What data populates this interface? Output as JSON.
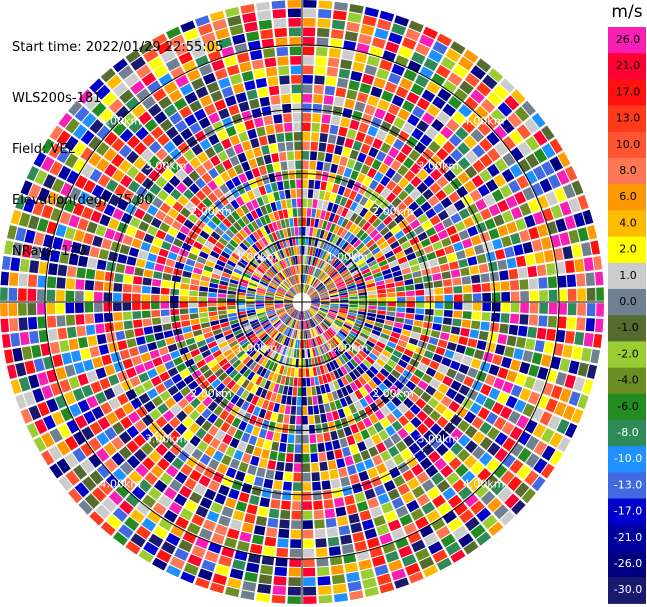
{
  "info": {
    "start_time": "Start time: 2022/01/29 22:55:05",
    "instrument": "WLS200s-181",
    "field": "Field: VEL",
    "elevation": "Elevation(deg): 75.00",
    "nrays": "NRays: 120"
  },
  "colorbar": {
    "unit": "m/s",
    "ticks": [
      "26.0",
      "21.0",
      "17.0",
      "13.0",
      "10.0",
      "8.0",
      "6.0",
      "4.0",
      "2.0",
      "1.0",
      "0.0",
      "-1.0",
      "-2.0",
      "-4.0",
      "-6.0",
      "-8.0",
      "-10.0",
      "-13.0",
      "-17.0",
      "-21.0",
      "-26.0",
      "-30.0"
    ],
    "colors": [
      "#f81fb4",
      "#ff0033",
      "#ff1111",
      "#ff3a1a",
      "#ff5533",
      "#ff7755",
      "#ff9900",
      "#ffbb00",
      "#ffff00",
      "#cccccc",
      "#708090",
      "#556b2f",
      "#9acd32",
      "#6b8e23",
      "#228b22",
      "#2e8b57",
      "#1e90ff",
      "#4169e1",
      "#0000cd",
      "#0000a0",
      "#000080",
      "#191970"
    ]
  },
  "chart_data": {
    "type": "heatmap",
    "projection": "polar (PPI)",
    "field": "VEL",
    "units": "m/s",
    "nrays": 120,
    "range_ring_labels": [
      "1.00km",
      "2.00km",
      "3.00km",
      "4.00km"
    ],
    "range_rings_km": [
      1.0,
      2.0,
      3.0,
      4.0
    ],
    "max_range_km": 4.7,
    "value_scale": [
      -30.0,
      26.0
    ]
  }
}
